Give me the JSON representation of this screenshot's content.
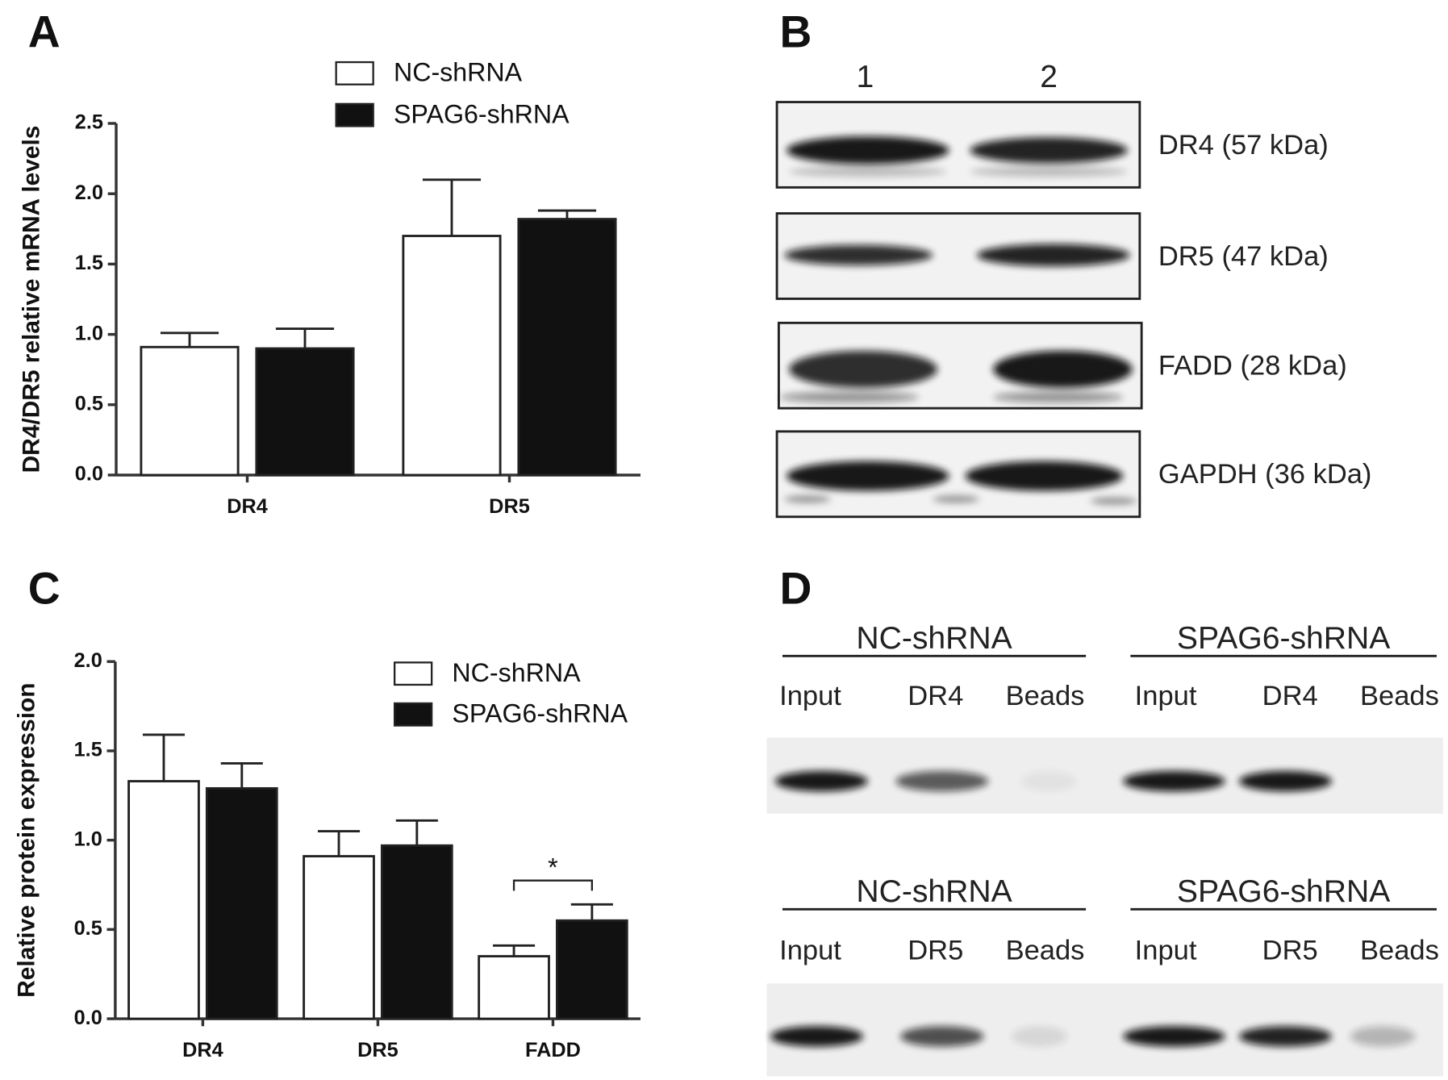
{
  "panel_labels": [
    "A",
    "B",
    "C",
    "D"
  ],
  "chart_data": [
    {
      "type": "bar",
      "ylabel": "DR4/DR5 relative mRNA levels",
      "categories": [
        "DR4",
        "DR5"
      ],
      "series": [
        {
          "name": "NC-shRNA",
          "color": "#ffffff",
          "values": [
            0.91,
            1.7
          ],
          "errors": [
            0.1,
            0.4
          ]
        },
        {
          "name": "SPAG6-shRNA",
          "color": "#111111",
          "values": [
            0.9,
            1.82
          ],
          "errors": [
            0.14,
            0.06
          ]
        }
      ],
      "ylim": [
        0,
        2.5
      ],
      "yticks": [
        {
          "value": 0,
          "label": "0.0"
        },
        0.5,
        {
          "value": 1,
          "label": "1.0"
        },
        1.5,
        {
          "value": 2,
          "label": "2.0"
        },
        2.5
      ],
      "grid": false
    },
    {
      "type": "bar",
      "ylabel": "Relative protein expression",
      "categories": [
        "DR4",
        "DR5",
        "FADD"
      ],
      "series": [
        {
          "name": "NC-shRNA",
          "color": "#ffffff",
          "values": [
            1.33,
            0.91,
            0.35
          ],
          "errors": [
            0.26,
            0.14,
            0.06
          ]
        },
        {
          "name": "SPAG6-shRNA",
          "color": "#111111",
          "values": [
            1.29,
            0.97,
            0.55
          ],
          "errors": [
            0.14,
            0.14,
            0.09
          ]
        }
      ],
      "ylim": [
        0,
        2.0
      ],
      "yticks": [
        {
          "value": 0,
          "label": "0.0"
        },
        0.5,
        {
          "value": 1,
          "label": "1.0"
        },
        1.5,
        {
          "value": 2,
          "label": "2.0"
        }
      ],
      "annotation": "*",
      "grid": false
    }
  ],
  "blot_b": {
    "lanes": [
      "1",
      "2"
    ],
    "rows": [
      "DR4 (57 kDa)",
      "DR5 (47 kDa)",
      "FADD (28 kDa)",
      "GAPDH (36 kDa)"
    ]
  },
  "blot_d": {
    "rows": [
      {
        "groups": [
          "NC-shRNA",
          "SPAG6-shRNA"
        ],
        "lanes": [
          "Input",
          "DR4",
          "Beads",
          "Input",
          "DR4",
          "Beads"
        ]
      },
      {
        "groups": [
          "NC-shRNA",
          "SPAG6-shRNA"
        ],
        "lanes": [
          "Input",
          "DR5",
          "Beads",
          "Input",
          "DR5",
          "Beads"
        ]
      }
    ]
  }
}
